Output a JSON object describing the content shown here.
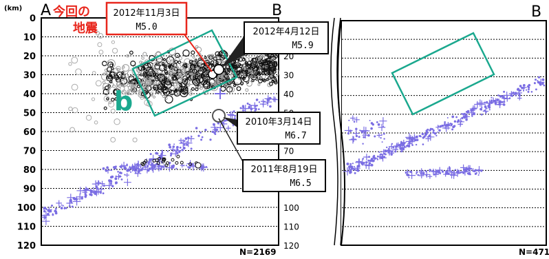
{
  "chart_data": [
    {
      "type": "scatter",
      "panel": "left",
      "y_unit": "(km)",
      "section_start_label": "A",
      "section_end_label": "B",
      "ylim": [
        0,
        120
      ],
      "yticks": [
        0,
        10,
        20,
        30,
        40,
        50,
        60,
        70,
        80,
        90,
        100,
        110,
        120
      ],
      "yticks_right": [
        20,
        30,
        40,
        50,
        60,
        70,
        80,
        90,
        100,
        110,
        120
      ],
      "grid": "horizontal dotted lines every 10 km",
      "count_label": "N=2169",
      "region_label": "b",
      "colors": {
        "region_box": "#1aa88e",
        "region_label": "#1aa88e",
        "current_quake_box": "#e8261c",
        "deep_events": "#7a6de3",
        "shallow_events": "#555555"
      },
      "series": [
        {
          "description": "gray and black circles clustered roughly 15–55 km depth"
        },
        {
          "description": "purple crosses and dots dipping from about 45 km to 110 km depth"
        }
      ],
      "annotations": [
        {
          "date": "2012年11月3日",
          "mag": "M5.0",
          "sub": "今回の\n地震",
          "depth": 30
        },
        {
          "date": "2012年4月12日",
          "mag": "M5.9",
          "depth": 27
        },
        {
          "date": "2010年3月14日",
          "mag": "M6.7",
          "depth": 45
        },
        {
          "date": "2011年8月19日",
          "mag": "M6.5",
          "depth": 77
        }
      ]
    },
    {
      "type": "scatter",
      "panel": "right",
      "section_end_label": "B",
      "ylim": [
        0,
        120
      ],
      "grid": "horizontal dotted lines every 10 km",
      "count_label": "N=471",
      "colors": {
        "region_box": "#1aa88e",
        "events": "#7a6de3"
      },
      "series": [
        {
          "description": "purple crosses and dots dipping from about 45 km to 90 km depth, rising to about 30 km at the right edge"
        }
      ]
    }
  ],
  "labels": {
    "unit": "(km)",
    "a": "A",
    "b_left": "B",
    "b_right": "B",
    "n_left": "N=2169",
    "n_right": "N=471",
    "region_b": "b",
    "current_title_1": "今回の",
    "current_title_2": "地震",
    "current_date": "2012年11月3日",
    "current_mag": "M5.0",
    "eq2_date": "2012年4月12日",
    "eq2_mag": "M5.9",
    "eq3_date": "2010年3月14日",
    "eq3_mag": "M6.7",
    "eq4_date": "2011年8月19日",
    "eq4_mag": "M6.5"
  }
}
